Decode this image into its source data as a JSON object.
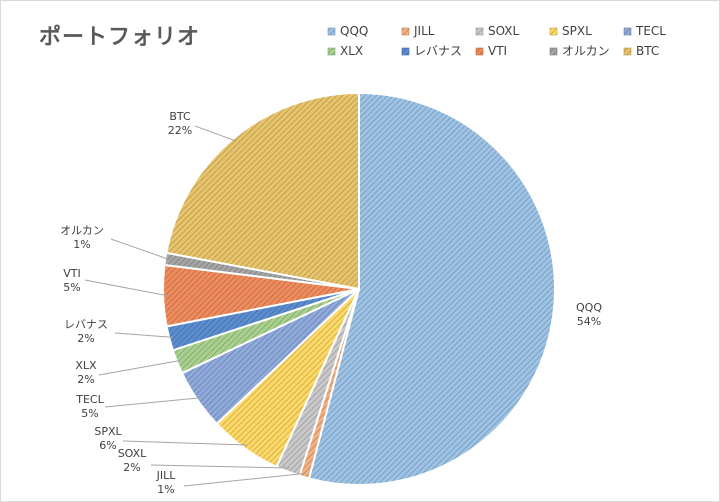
{
  "chart_data": {
    "type": "pie",
    "title": "ポートフォリオ",
    "legend_position": "top-right",
    "slices": [
      {
        "label": "QQQ",
        "value": 54,
        "display": "54%",
        "color": "#9dc3e6"
      },
      {
        "label": "JILL",
        "value": 0.8,
        "display": "1%",
        "color": "#f4b183"
      },
      {
        "label": "SOXL",
        "value": 2,
        "display": "2%",
        "color": "#c9c9c9"
      },
      {
        "label": "SPXL",
        "value": 6,
        "display": "6%",
        "color": "#ffd966"
      },
      {
        "label": "TECL",
        "value": 5,
        "display": "5%",
        "color": "#8faadc"
      },
      {
        "label": "XLX",
        "value": 2,
        "display": "2%",
        "color": "#a9d18e"
      },
      {
        "label": "レバナス",
        "value": 2,
        "display": "2%",
        "color": "#5b8dd1"
      },
      {
        "label": "VTI",
        "value": 5,
        "display": "5%",
        "color": "#f08c5c"
      },
      {
        "label": "オルカン",
        "value": 1,
        "display": "1%",
        "color": "#a5a5a5"
      },
      {
        "label": "BTC",
        "value": 22,
        "display": "22%",
        "color": "#e8c56b"
      }
    ]
  }
}
